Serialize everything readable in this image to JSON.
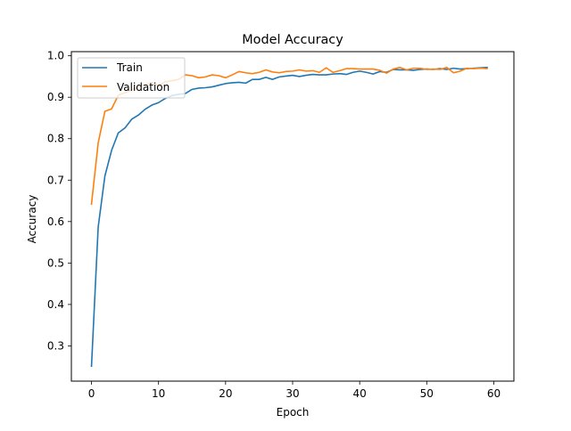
{
  "chart_data": {
    "type": "line",
    "title": "Model Accuracy",
    "xlabel": "Epoch",
    "ylabel": "Accuracy",
    "xlim": [
      -3,
      63
    ],
    "ylim": [
      0.215,
      1.01
    ],
    "xticks": [
      0,
      10,
      20,
      30,
      40,
      50,
      60
    ],
    "yticks": [
      0.3,
      0.4,
      0.5,
      0.6,
      0.7,
      0.8,
      0.9,
      1.0
    ],
    "ytick_labels": [
      "0.3",
      "0.4",
      "0.5",
      "0.6",
      "0.7",
      "0.8",
      "0.9",
      "1.0"
    ],
    "grid": false,
    "legend_position": "top-left",
    "series": [
      {
        "name": "Train",
        "color": "#1f77b4",
        "x": [
          0,
          1,
          2,
          3,
          4,
          5,
          6,
          7,
          8,
          9,
          10,
          11,
          12,
          13,
          14,
          15,
          16,
          17,
          18,
          19,
          20,
          21,
          22,
          23,
          24,
          25,
          26,
          27,
          28,
          29,
          30,
          31,
          32,
          33,
          34,
          35,
          36,
          37,
          38,
          39,
          40,
          41,
          42,
          43,
          44,
          45,
          46,
          47,
          48,
          49,
          50,
          51,
          52,
          53,
          54,
          55,
          56,
          57,
          58,
          59
        ],
        "values": [
          0.251,
          0.587,
          0.71,
          0.772,
          0.814,
          0.826,
          0.847,
          0.857,
          0.871,
          0.881,
          0.887,
          0.897,
          0.904,
          0.907,
          0.909,
          0.919,
          0.922,
          0.923,
          0.925,
          0.929,
          0.933,
          0.935,
          0.936,
          0.934,
          0.943,
          0.943,
          0.948,
          0.943,
          0.949,
          0.951,
          0.953,
          0.95,
          0.953,
          0.955,
          0.954,
          0.954,
          0.956,
          0.957,
          0.955,
          0.96,
          0.963,
          0.96,
          0.956,
          0.962,
          0.96,
          0.967,
          0.966,
          0.966,
          0.965,
          0.967,
          0.968,
          0.967,
          0.969,
          0.967,
          0.97,
          0.968,
          0.969,
          0.97,
          0.971,
          0.972
        ]
      },
      {
        "name": "Validation",
        "color": "#ff7f0e",
        "x": [
          0,
          1,
          2,
          3,
          4,
          5,
          6,
          7,
          8,
          9,
          10,
          11,
          12,
          13,
          14,
          15,
          16,
          17,
          18,
          19,
          20,
          21,
          22,
          23,
          24,
          25,
          26,
          27,
          28,
          29,
          30,
          31,
          32,
          33,
          34,
          35,
          36,
          37,
          38,
          39,
          40,
          41,
          42,
          43,
          44,
          45,
          46,
          47,
          48,
          49,
          50,
          51,
          52,
          53,
          54,
          55,
          56,
          57,
          58,
          59
        ],
        "values": [
          0.642,
          0.79,
          0.866,
          0.872,
          0.905,
          0.911,
          0.917,
          0.925,
          0.93,
          0.935,
          0.928,
          0.937,
          0.94,
          0.943,
          0.954,
          0.952,
          0.947,
          0.949,
          0.954,
          0.952,
          0.947,
          0.954,
          0.962,
          0.959,
          0.957,
          0.96,
          0.966,
          0.961,
          0.959,
          0.962,
          0.963,
          0.966,
          0.963,
          0.964,
          0.96,
          0.971,
          0.96,
          0.964,
          0.969,
          0.969,
          0.968,
          0.968,
          0.968,
          0.965,
          0.958,
          0.968,
          0.972,
          0.966,
          0.97,
          0.97,
          0.967,
          0.968,
          0.967,
          0.972,
          0.959,
          0.963,
          0.97,
          0.969,
          0.97,
          0.969
        ]
      }
    ]
  }
}
